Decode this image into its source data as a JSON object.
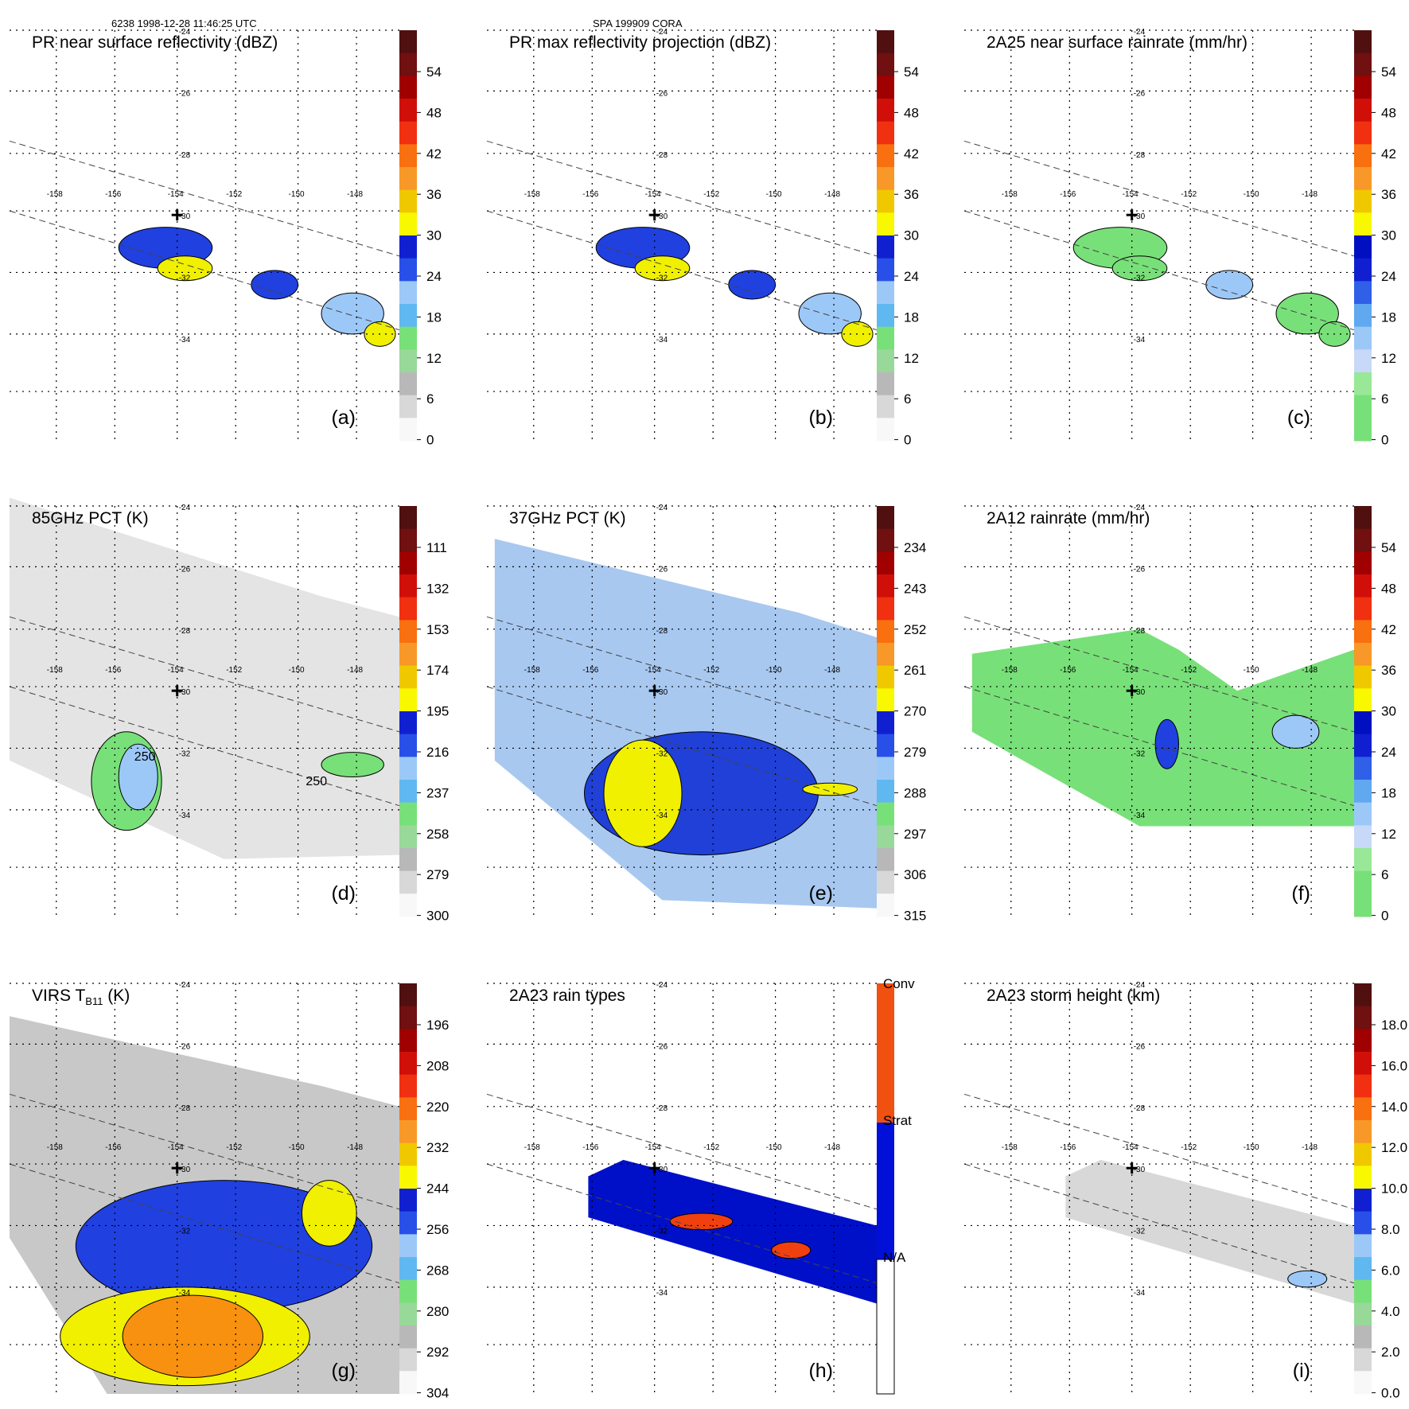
{
  "header": {
    "left": "6238 1998-12-28 11:46:25 UTC",
    "center": "SPA 199909 CORA"
  },
  "map": {
    "lon_ticks": [
      "-158",
      "-156",
      "-154",
      "-152",
      "-150",
      "-148"
    ],
    "lat_ticks": [
      "-24",
      "-26",
      "-28",
      "-30",
      "-32",
      "-34"
    ],
    "center_marker": "plus-icon",
    "colors": {
      "green": "#78e078",
      "lightblue": "#9cc8f8",
      "blue": "#2040e0",
      "darkblue": "#0010c8",
      "yellow": "#f0f000",
      "orange": "#f89010",
      "red": "#e01000",
      "darkred": "#801000",
      "gray": "#a0a0a0",
      "lightgray": "#d8d8d8"
    }
  },
  "panels": [
    {
      "label": "(a)",
      "title": "PR near surface reflectivity (dBZ)",
      "colorbar": [
        "54",
        "48",
        "42",
        "36",
        "30",
        "24",
        "18",
        "12",
        "6",
        "0"
      ]
    },
    {
      "label": "(b)",
      "title": "PR max reflectivity projection (dBZ)",
      "colorbar": [
        "54",
        "48",
        "42",
        "36",
        "30",
        "24",
        "18",
        "12",
        "6",
        "0"
      ]
    },
    {
      "label": "(c)",
      "title": "2A25 near surface rainrate (mm/hr)",
      "colorbar": [
        "54",
        "48",
        "42",
        "36",
        "30",
        "24",
        "18",
        "12",
        "6",
        "0"
      ]
    },
    {
      "label": "(d)",
      "title": "85GHz PCT (K)",
      "colorbar": [
        "111",
        "132",
        "153",
        "174",
        "195",
        "216",
        "237",
        "258",
        "279",
        "300"
      ],
      "contours": [
        "250",
        "250"
      ]
    },
    {
      "label": "(e)",
      "title": "37GHz PCT (K)",
      "colorbar": [
        "234",
        "243",
        "252",
        "261",
        "270",
        "279",
        "288",
        "297",
        "306",
        "315"
      ]
    },
    {
      "label": "(f)",
      "title": "2A12 rainrate (mm/hr)",
      "colorbar": [
        "54",
        "48",
        "42",
        "36",
        "30",
        "24",
        "18",
        "12",
        "6",
        "0"
      ]
    },
    {
      "label": "(g)",
      "title": "VIRS T",
      "title_sub": "B11",
      "title_unit": " (K)",
      "colorbar": [
        "196",
        "208",
        "220",
        "232",
        "244",
        "256",
        "268",
        "280",
        "292",
        "304"
      ]
    },
    {
      "label": "(h)",
      "title": "2A23 rain types",
      "colorbar": [
        "Conv",
        "Strat",
        "N/A"
      ]
    },
    {
      "label": "(i)",
      "title": "2A23 storm height (km)",
      "colorbar": [
        "18.0",
        "16.0",
        "14.0",
        "12.0",
        "10.0",
        "8.0",
        "6.0",
        "4.0",
        "2.0",
        "0.0"
      ]
    }
  ]
}
